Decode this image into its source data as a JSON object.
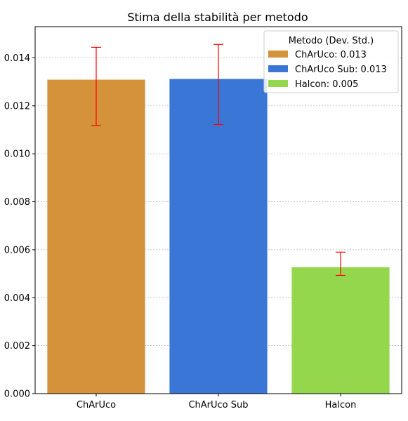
{
  "chart_data": {
    "type": "bar",
    "title": "Stima della stabilità per metodo",
    "xlabel": "",
    "ylabel": "",
    "categories": [
      "ChArUco",
      "ChArUco Sub",
      "Halcon"
    ],
    "values": [
      0.01309,
      0.01312,
      0.00527
    ],
    "error_low": [
      0.01118,
      0.01122,
      0.00493
    ],
    "error_high": [
      0.01444,
      0.01456,
      0.0059
    ],
    "colors": [
      "#D4923A",
      "#3A76D6",
      "#94D64C"
    ],
    "error_color": "#FF0000",
    "ylim": [
      0,
      0.0153
    ],
    "yticks": [
      "0.000",
      "0.002",
      "0.004",
      "0.006",
      "0.008",
      "0.010",
      "0.012",
      "0.014"
    ],
    "grid": true,
    "legend": {
      "title": "Metodo (Dev. Std.)",
      "position": "top-right",
      "entries": [
        "ChArUco: 0.013",
        "ChArUco Sub: 0.013",
        "Halcon: 0.005"
      ]
    }
  }
}
